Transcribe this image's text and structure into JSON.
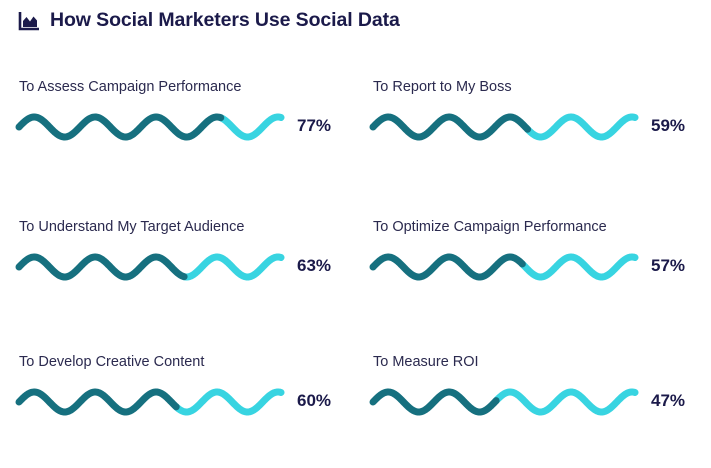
{
  "title": "How Social Marketers Use Social Data",
  "icon": "area-chart-icon",
  "colors": {
    "filled": "#16707f",
    "remaining": "#38d4e1",
    "title": "#1b1a4a"
  },
  "chart_data": {
    "type": "bar",
    "title": "How Social Marketers Use Social Data",
    "categories": [
      "To Assess Campaign Performance",
      "To Report to My Boss",
      "To Understand My Target Audience",
      "To Optimize Campaign Performance",
      "To Develop Creative Content",
      "To Measure ROI"
    ],
    "values": [
      77,
      59,
      63,
      57,
      60,
      47
    ],
    "labels": [
      "77%",
      "59%",
      "63%",
      "57%",
      "60%",
      "47%"
    ],
    "ylim": [
      0,
      100
    ],
    "grid": false
  }
}
